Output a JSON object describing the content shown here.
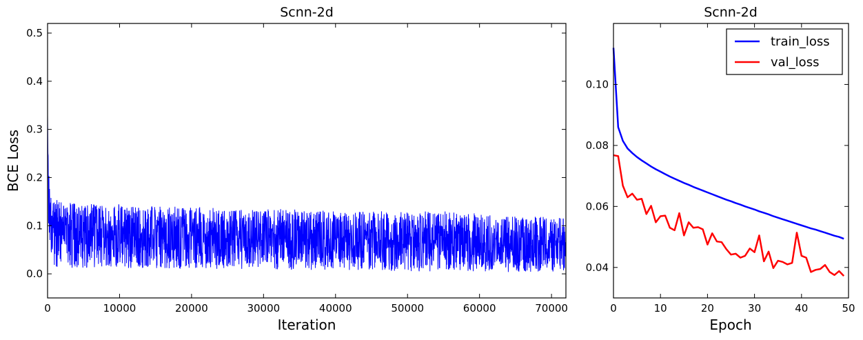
{
  "chart_data": [
    {
      "type": "line",
      "title": "Scnn-2d",
      "xlabel": "Iteration",
      "ylabel": "BCE Loss",
      "xlim": [
        0,
        72000
      ],
      "ylim": [
        -0.05,
        0.52
      ],
      "grid": false,
      "x_ticks": [
        "0",
        "10000",
        "20000",
        "30000",
        "40000",
        "50000",
        "60000",
        "70000"
      ],
      "y_ticks": [
        "0.0",
        "0.1",
        "0.2",
        "0.3",
        "0.4",
        "0.5"
      ],
      "series": [
        {
          "color": "#0000ff",
          "description": "noisy per-iteration loss",
          "x": [
            0,
            100,
            300,
            600,
            1000,
            2000,
            5000,
            10000,
            15000,
            20000,
            25000,
            30000,
            35000,
            40000,
            45000,
            50000,
            55000,
            60000,
            65000,
            70000,
            72000
          ],
          "y": [
            0.33,
            0.22,
            0.16,
            0.13,
            0.11,
            0.09,
            0.085,
            0.08,
            0.078,
            0.076,
            0.074,
            0.072,
            0.07,
            0.068,
            0.066,
            0.064,
            0.062,
            0.06,
            0.058,
            0.057,
            0.056
          ],
          "y_min": [
            0.04,
            0.03,
            0.025,
            0.02,
            0.015,
            0.012,
            0.012,
            0.012,
            0.012,
            0.01,
            0.01,
            0.01,
            0.008,
            0.008,
            0.008,
            0.005,
            0.005,
            0.005,
            0.003,
            0.003,
            0.003
          ],
          "y_max": [
            0.33,
            0.24,
            0.17,
            0.16,
            0.155,
            0.15,
            0.145,
            0.145,
            0.14,
            0.14,
            0.135,
            0.135,
            0.135,
            0.13,
            0.13,
            0.13,
            0.13,
            0.125,
            0.12,
            0.12,
            0.115
          ]
        }
      ]
    },
    {
      "type": "line",
      "title": "Scnn-2d",
      "xlabel": "Epoch",
      "ylabel": "",
      "xlim": [
        0,
        50
      ],
      "ylim": [
        0.03,
        0.12
      ],
      "grid": false,
      "legend_position": "top-right",
      "x_ticks": [
        "0",
        "10",
        "20",
        "30",
        "40",
        "50"
      ],
      "y_ticks": [
        "0.04",
        "0.06",
        "0.08",
        "0.10"
      ],
      "x": [
        0,
        1,
        2,
        3,
        4,
        5,
        6,
        7,
        8,
        9,
        10,
        11,
        12,
        13,
        14,
        15,
        16,
        17,
        18,
        19,
        20,
        21,
        22,
        23,
        24,
        25,
        26,
        27,
        28,
        29,
        30,
        31,
        32,
        33,
        34,
        35,
        36,
        37,
        38,
        39,
        40,
        41,
        42,
        43,
        44,
        45,
        46,
        47,
        48,
        49
      ],
      "series": [
        {
          "name": "train_loss",
          "color": "#0000ff",
          "values": [
            0.112,
            0.086,
            0.0815,
            0.079,
            0.0775,
            0.0762,
            0.0751,
            0.0741,
            0.0731,
            0.0722,
            0.0714,
            0.0706,
            0.0698,
            0.0691,
            0.0684,
            0.0677,
            0.0671,
            0.0664,
            0.0658,
            0.0652,
            0.0646,
            0.064,
            0.0634,
            0.0628,
            0.0622,
            0.0617,
            0.0611,
            0.0606,
            0.06,
            0.0595,
            0.059,
            0.0584,
            0.0579,
            0.0574,
            0.0568,
            0.0563,
            0.0558,
            0.0553,
            0.0548,
            0.0543,
            0.0538,
            0.0533,
            0.0528,
            0.0524,
            0.0519,
            0.0514,
            0.0509,
            0.0504,
            0.05,
            0.0494
          ]
        },
        {
          "name": "val_loss",
          "color": "#ff0000",
          "values": [
            0.0768,
            0.0765,
            0.0668,
            0.063,
            0.0642,
            0.0622,
            0.0625,
            0.0575,
            0.0602,
            0.0548,
            0.0568,
            0.057,
            0.053,
            0.0522,
            0.0578,
            0.0505,
            0.0548,
            0.053,
            0.0532,
            0.0525,
            0.0475,
            0.0512,
            0.0485,
            0.0483,
            0.046,
            0.0442,
            0.0445,
            0.0432,
            0.0438,
            0.0462,
            0.045,
            0.0505,
            0.042,
            0.0452,
            0.0398,
            0.0422,
            0.0418,
            0.041,
            0.0415,
            0.0514,
            0.0438,
            0.0432,
            0.0385,
            0.0392,
            0.0395,
            0.0408,
            0.0385,
            0.0375,
            0.0388,
            0.0372
          ]
        }
      ]
    }
  ]
}
